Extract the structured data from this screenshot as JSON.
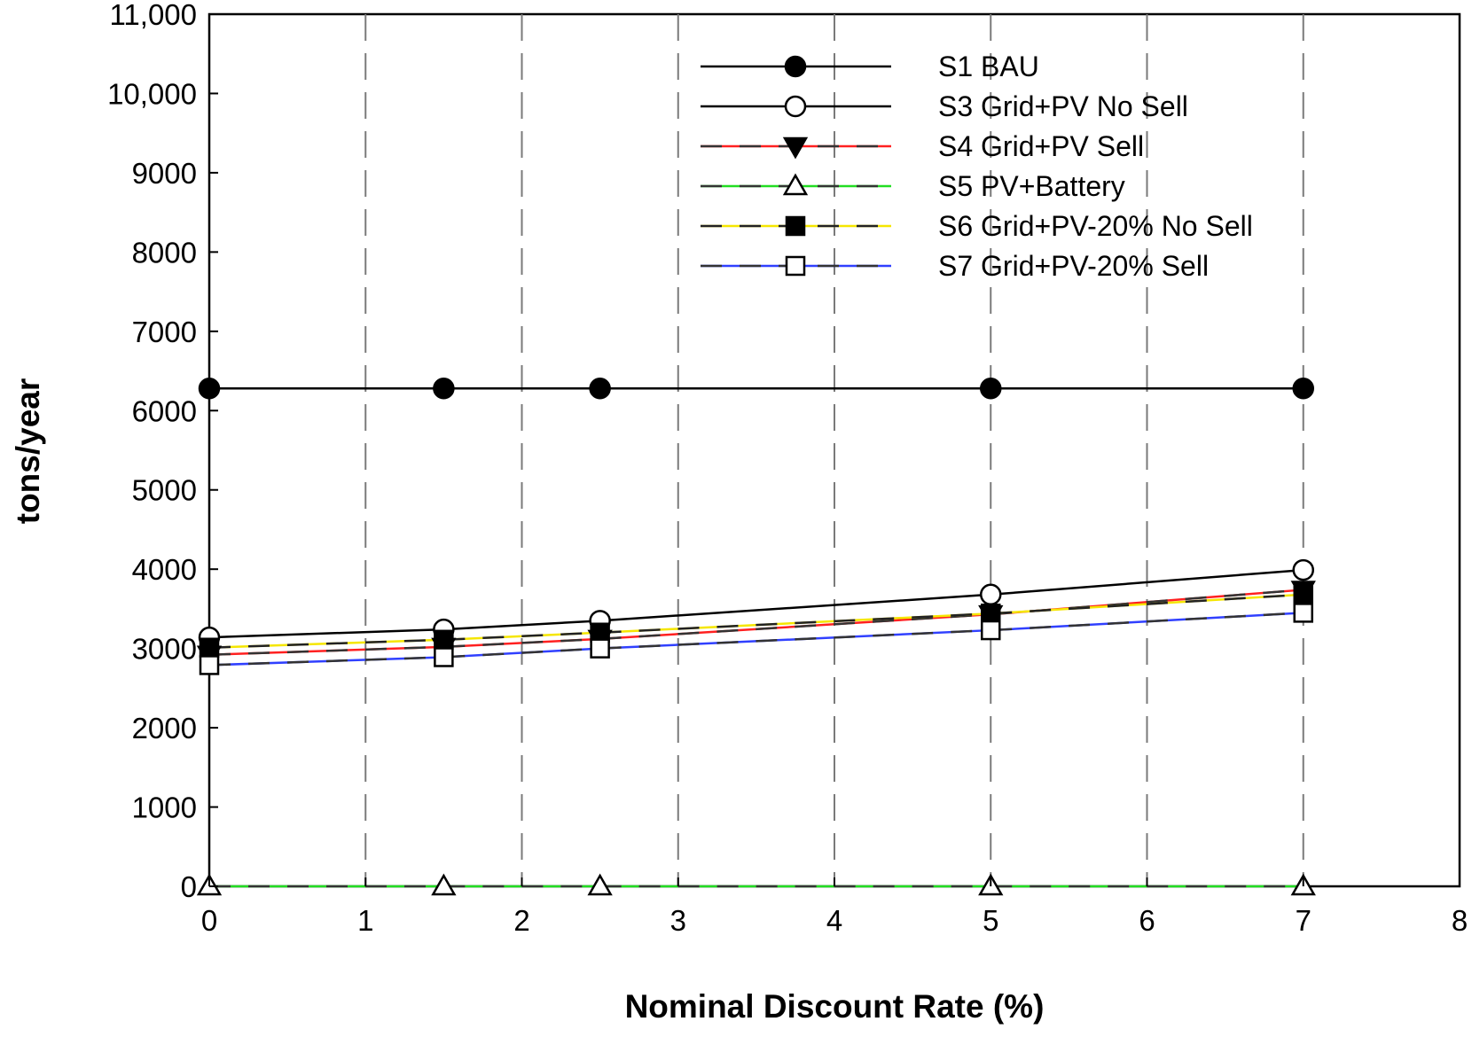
{
  "chart_data": {
    "type": "line",
    "title": "",
    "xlabel": "Nominal Discount Rate (%)",
    "ylabel": "tons/year",
    "xlim": [
      0,
      8
    ],
    "ylim": [
      0,
      11000
    ],
    "x_ticks": [
      0,
      1,
      2,
      3,
      4,
      5,
      6,
      7,
      8
    ],
    "x_tick_labels": [
      "0",
      "1",
      "2",
      "3",
      "4",
      "5",
      "6",
      "7",
      "8"
    ],
    "y_ticks": [
      0,
      1000,
      2000,
      3000,
      4000,
      5000,
      6000,
      7000,
      8000,
      9000,
      10000,
      11000
    ],
    "y_tick_labels": [
      "0",
      "1000",
      "2000",
      "3000",
      "4000",
      "5000",
      "6000",
      "7000",
      "8000",
      "9000",
      "10,000",
      "11,000"
    ],
    "grid": "vertical dashed",
    "legend_position": "top-right",
    "x": [
      0,
      1.5,
      2.5,
      5,
      7
    ],
    "series": [
      {
        "name": "S1 BAU",
        "line_color": "#000000",
        "dash_color": "",
        "marker": "circle",
        "marker_fill": "#000000",
        "values": [
          6280,
          6280,
          6280,
          6280,
          6280
        ]
      },
      {
        "name": "S3 Grid+PV No Sell",
        "line_color": "#000000",
        "dash_color": "",
        "marker": "circle",
        "marker_fill": "#ffffff",
        "values": [
          3140,
          3240,
          3350,
          3680,
          3990
        ]
      },
      {
        "name": "S4 Grid+PV Sell",
        "line_color": "#ff2020",
        "dash_color": "#333333",
        "marker": "triangle-down",
        "marker_fill": "#000000",
        "values": [
          2920,
          3020,
          3120,
          3430,
          3740
        ]
      },
      {
        "name": "S5 PV+Battery",
        "line_color": "#22dd22",
        "dash_color": "#333333",
        "marker": "triangle-up",
        "marker_fill": "#ffffff",
        "values": [
          0,
          0,
          0,
          0,
          0
        ]
      },
      {
        "name": "S6 Grid+PV-20% No Sell",
        "line_color": "#f5e600",
        "dash_color": "#222222",
        "marker": "square",
        "marker_fill": "#000000",
        "values": [
          3010,
          3110,
          3200,
          3440,
          3680
        ]
      },
      {
        "name": "S7 Grid+PV-20% Sell",
        "line_color": "#3040ff",
        "dash_color": "#333333",
        "marker": "square",
        "marker_fill": "#ffffff",
        "values": [
          2790,
          2890,
          3000,
          3230,
          3450
        ]
      }
    ]
  }
}
